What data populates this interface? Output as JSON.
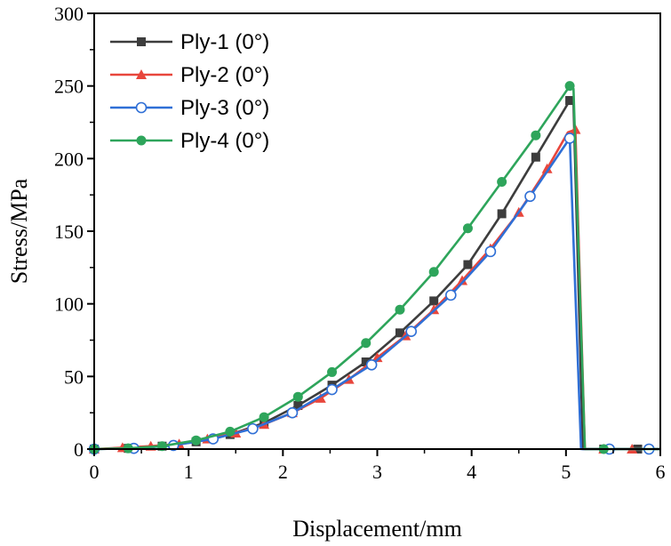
{
  "chart_data": {
    "type": "line",
    "title": "",
    "xlabel": "Displacement/mm",
    "ylabel": "Stress/MPa",
    "xlim": [
      0,
      6
    ],
    "ylim": [
      0,
      300
    ],
    "xticks": [
      0,
      1,
      2,
      3,
      4,
      5,
      6
    ],
    "yticks": [
      0,
      50,
      100,
      150,
      200,
      250,
      300
    ],
    "grid": false,
    "legend_position": "top-left",
    "series": [
      {
        "name": "Ply-1 (0°)",
        "color": "#3d3d3d",
        "marker": "square",
        "x": [
          0,
          0.36,
          0.72,
          1.08,
          1.44,
          1.8,
          2.16,
          2.52,
          2.88,
          3.24,
          3.6,
          3.96,
          4.32,
          4.68,
          5.04,
          5.08,
          5.18,
          5.4,
          5.76,
          6.0
        ],
        "y": [
          0,
          0.5,
          2,
          5,
          10,
          18,
          30,
          44,
          60,
          80,
          102,
          127,
          162,
          201,
          240,
          238,
          0,
          0,
          0,
          0
        ],
        "marker_x": [
          0,
          0.36,
          0.72,
          1.08,
          1.44,
          1.8,
          2.16,
          2.52,
          2.88,
          3.24,
          3.6,
          3.96,
          4.32,
          4.68,
          5.04,
          5.4,
          5.76
        ],
        "marker_y": [
          0,
          0.5,
          2,
          5,
          10,
          18,
          30,
          44,
          60,
          80,
          102,
          127,
          162,
          201,
          240,
          0,
          0
        ]
      },
      {
        "name": "Ply-2 (0°)",
        "color": "#e8463c",
        "marker": "triangle",
        "x": [
          0,
          0.3,
          0.6,
          0.9,
          1.2,
          1.5,
          1.8,
          2.1,
          2.4,
          2.7,
          3.0,
          3.3,
          3.6,
          3.9,
          4.2,
          4.5,
          4.8,
          5.02,
          5.1,
          5.2,
          5.4,
          5.7,
          6.0
        ],
        "y": [
          0,
          1,
          2,
          3.5,
          7,
          11,
          17,
          25,
          35,
          48,
          63,
          78,
          96,
          116,
          138,
          163,
          193,
          218,
          220,
          0,
          0,
          0,
          0
        ],
        "marker_x": [
          0,
          0.3,
          0.6,
          0.9,
          1.2,
          1.5,
          1.8,
          2.1,
          2.4,
          2.7,
          3.0,
          3.3,
          3.6,
          3.9,
          4.2,
          4.5,
          4.8,
          5.1,
          5.4,
          5.7
        ],
        "marker_y": [
          0,
          1,
          2,
          3.5,
          7,
          11,
          17,
          25,
          35,
          48,
          63,
          78,
          96,
          116,
          138,
          163,
          193,
          220,
          0,
          0
        ]
      },
      {
        "name": "Ply-3 (0°)",
        "color": "#2f6fd6",
        "marker": "circle-open",
        "x": [
          0,
          0.42,
          0.84,
          1.26,
          1.68,
          2.1,
          2.52,
          2.94,
          3.36,
          3.78,
          4.2,
          4.62,
          5.04,
          5.16,
          5.46,
          5.88,
          6.0
        ],
        "y": [
          0,
          0.5,
          2.5,
          7,
          14,
          25,
          41,
          58,
          81,
          106,
          136,
          174,
          214,
          0,
          0,
          0,
          0
        ],
        "marker_x": [
          0,
          0.42,
          0.84,
          1.26,
          1.68,
          2.1,
          2.52,
          2.94,
          3.36,
          3.78,
          4.2,
          4.62,
          5.04,
          5.46,
          5.88
        ],
        "marker_y": [
          0,
          0.5,
          2.5,
          7,
          14,
          25,
          41,
          58,
          81,
          106,
          136,
          174,
          214,
          0,
          0
        ]
      },
      {
        "name": "Ply-4 (0°)",
        "color": "#2ea55b",
        "marker": "circle",
        "x": [
          0,
          0.36,
          0.72,
          1.08,
          1.44,
          1.8,
          2.16,
          2.52,
          2.88,
          3.24,
          3.6,
          3.96,
          4.32,
          4.68,
          5.04,
          5.08,
          5.2,
          5.4,
          5.76,
          6.0
        ],
        "y": [
          0,
          0.5,
          2,
          6,
          12,
          22,
          36,
          53,
          73,
          96,
          122,
          152,
          184,
          216,
          250,
          248,
          0,
          0,
          0,
          0
        ],
        "marker_x": [
          0,
          0.36,
          0.72,
          1.08,
          1.44,
          1.8,
          2.16,
          2.52,
          2.88,
          3.24,
          3.6,
          3.96,
          4.32,
          4.68,
          5.04,
          5.4
        ],
        "marker_y": [
          0,
          0.5,
          2,
          6,
          12,
          22,
          36,
          53,
          73,
          96,
          122,
          152,
          184,
          216,
          250,
          0
        ]
      }
    ]
  }
}
